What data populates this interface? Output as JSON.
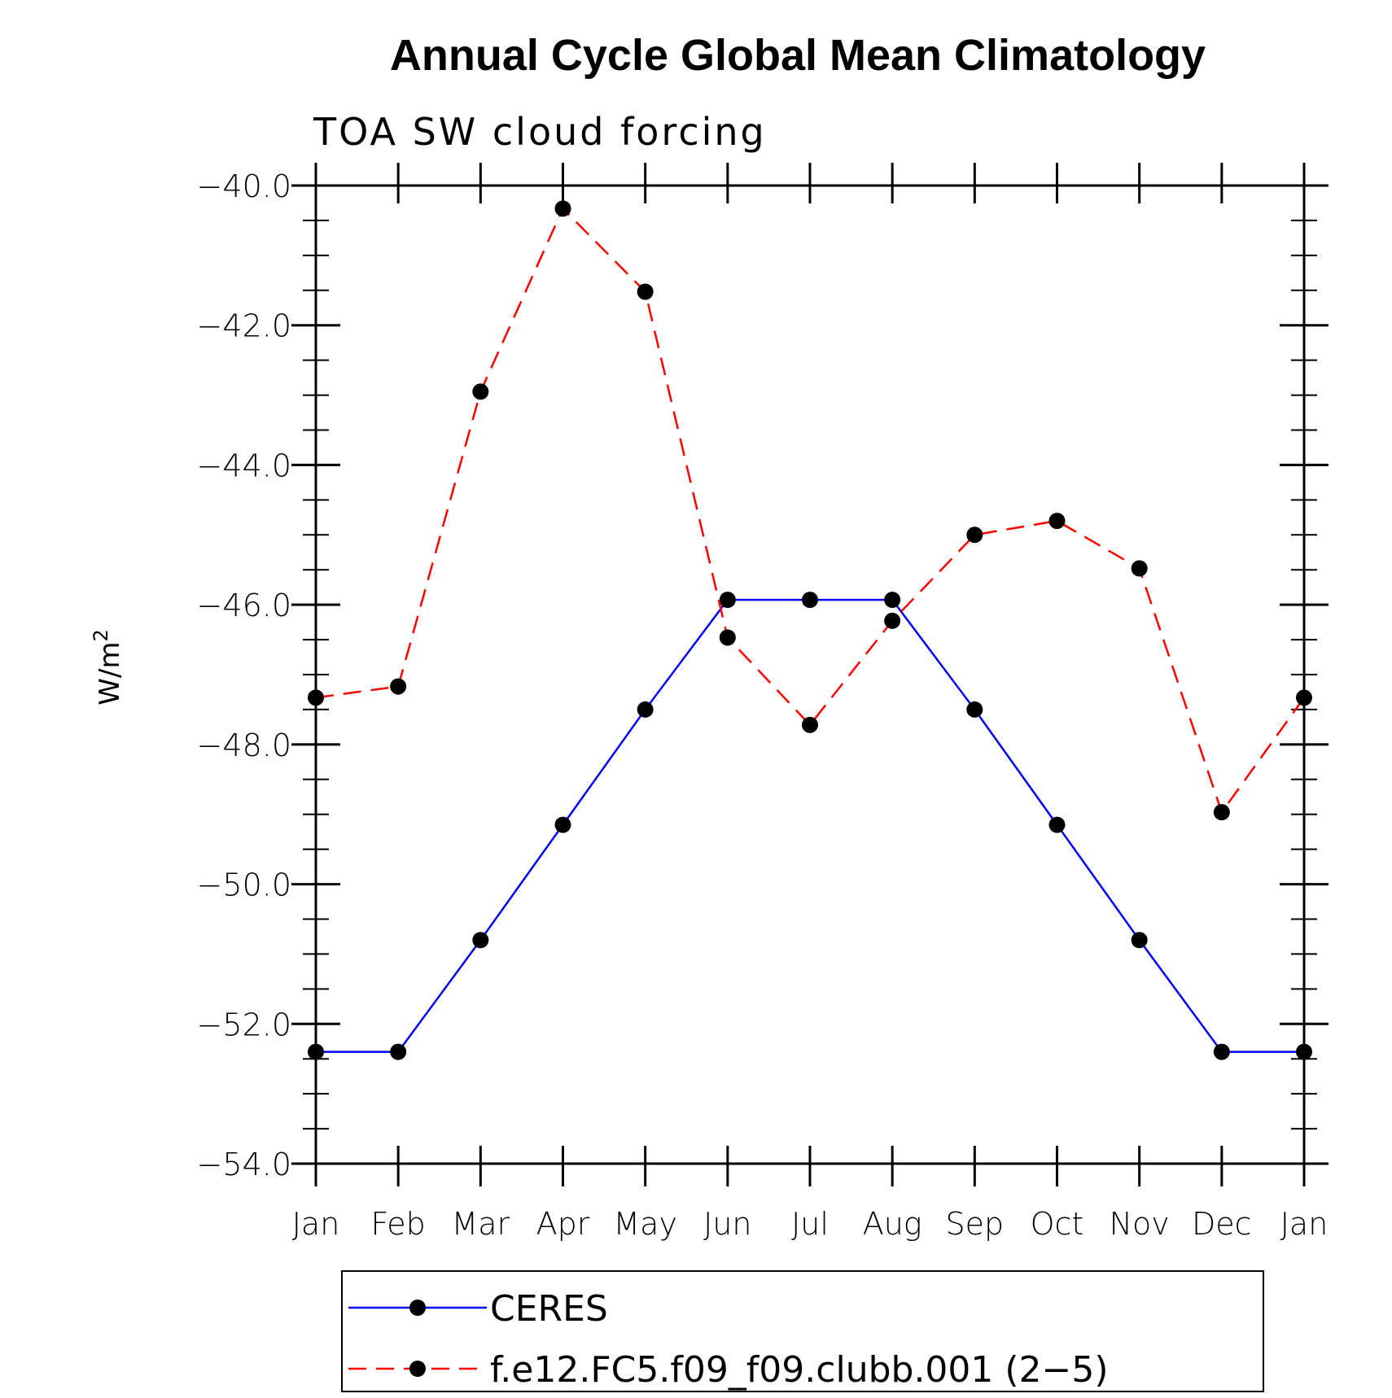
{
  "chart_data": {
    "type": "line",
    "title": "Annual Cycle Global Mean Climatology",
    "subtitle": "TOA SW cloud forcing",
    "xlabel": "",
    "ylabel_base": "W/m",
    "ylabel_sup": "2",
    "ylim": [
      -54.0,
      -40.0
    ],
    "yticks": [
      -40.0,
      -42.0,
      -44.0,
      -46.0,
      -48.0,
      -50.0,
      -52.0,
      -54.0
    ],
    "ytick_labels": [
      "−40.0",
      "−42.0",
      "−44.0",
      "−46.0",
      "−48.0",
      "−50.0",
      "−52.0",
      "−54.0"
    ],
    "categories": [
      "Jan",
      "Feb",
      "Mar",
      "Apr",
      "May",
      "Jun",
      "Jul",
      "Aug",
      "Sep",
      "Oct",
      "Nov",
      "Dec",
      "Jan"
    ],
    "series": [
      {
        "name": "CERES",
        "color": "#0000ff",
        "dash": "solid",
        "values": [
          -52.4,
          -52.4,
          -50.8,
          -49.15,
          -47.5,
          -45.93,
          -45.93,
          -45.93,
          -47.5,
          -49.15,
          -50.8,
          -52.4,
          -52.4
        ]
      },
      {
        "name": "f.e12.FC5.f09_f09.clubb.001 (2−5)",
        "color": "#ff0000",
        "dash": "dashed",
        "values": [
          -47.33,
          -47.17,
          -42.95,
          -40.33,
          -41.52,
          -46.47,
          -47.72,
          -46.23,
          -45.0,
          -44.8,
          -45.48,
          -48.97,
          -47.33
        ]
      }
    ],
    "legend_position": "bottom"
  }
}
